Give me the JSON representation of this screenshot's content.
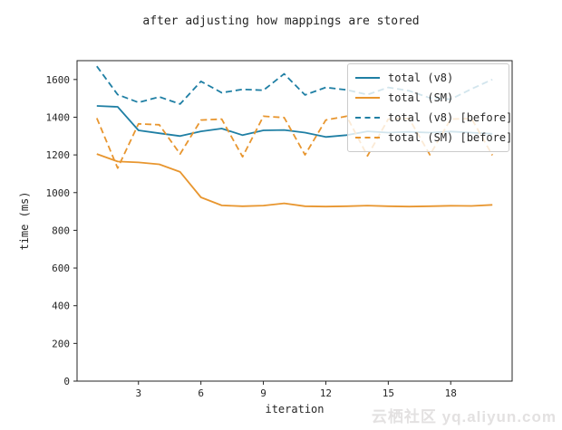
{
  "watermark": "云栖社区 yq.aliyun.com",
  "chart_data": {
    "type": "line",
    "title": "after adjusting how mappings are stored",
    "xlabel": "iteration",
    "ylabel": "time (ms)",
    "x": [
      1,
      2,
      3,
      4,
      5,
      6,
      7,
      8,
      9,
      10,
      11,
      12,
      13,
      14,
      15,
      16,
      17,
      18,
      19,
      20
    ],
    "xticks": [
      3,
      6,
      9,
      12,
      15,
      18
    ],
    "yticks": [
      0,
      200,
      400,
      600,
      800,
      1000,
      1200,
      1400,
      1600
    ],
    "xlim": [
      0.05,
      20.95
    ],
    "ylim": [
      0,
      1700
    ],
    "grid": false,
    "legend_position": "upper right",
    "axis_color": "#262626",
    "series": [
      {
        "name": "total (v8)",
        "style": "solid",
        "color": "#1f7fa4",
        "values": [
          1460,
          1455,
          1330,
          1315,
          1300,
          1325,
          1340,
          1305,
          1330,
          1332,
          1318,
          1295,
          1305,
          1325,
          1318,
          1322,
          1318,
          1324,
          1318,
          1312
        ]
      },
      {
        "name": "total (SM)",
        "style": "solid",
        "color": "#e8962f",
        "values": [
          1205,
          1165,
          1160,
          1150,
          1110,
          975,
          932,
          928,
          931,
          943,
          928,
          926,
          928,
          931,
          928,
          926,
          928,
          930,
          929,
          935
        ]
      },
      {
        "name": "total (v8) [before]",
        "style": "dashed",
        "color": "#1f7fa4",
        "values": [
          1670,
          1520,
          1478,
          1508,
          1470,
          1590,
          1530,
          1548,
          1543,
          1630,
          1518,
          1558,
          1545,
          1520,
          1558,
          1540,
          1502,
          1495,
          1550,
          1600
        ]
      },
      {
        "name": "total (SM) [before]",
        "style": "dashed",
        "color": "#e8962f",
        "values": [
          1395,
          1130,
          1365,
          1360,
          1205,
          1385,
          1390,
          1190,
          1405,
          1398,
          1200,
          1385,
          1405,
          1195,
          1390,
          1393,
          1200,
          1390,
          1393,
          1198
        ]
      }
    ]
  }
}
